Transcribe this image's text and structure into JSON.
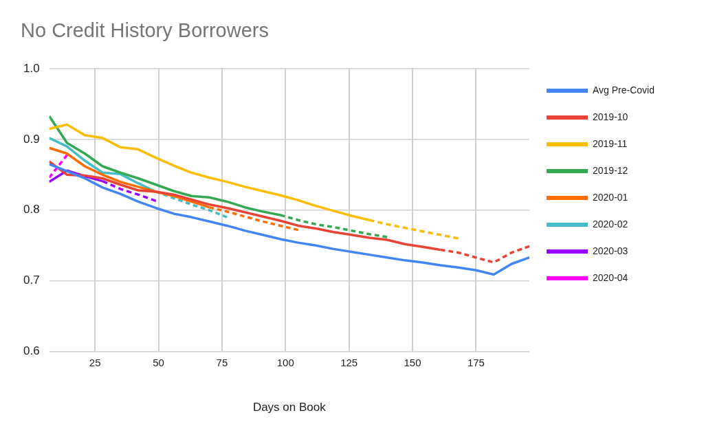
{
  "chart_data": {
    "type": "line",
    "title": "No Credit History Borrowers",
    "xlabel": "Days on Book",
    "xlim": [
      7,
      196
    ],
    "xticks": [
      25,
      50,
      75,
      100,
      125,
      150,
      175
    ],
    "ylim": [
      0.6,
      1.0
    ],
    "yticks": [
      0.6,
      0.7,
      0.8,
      0.9,
      {
        "value": 1.0,
        "label": "1.0"
      }
    ],
    "grid": true,
    "legend": "right",
    "marker": "none",
    "line_style": "solid",
    "series": [
      {
        "name": "Avg Pre-Covid",
        "color": "#4285f4",
        "x": [
          7,
          14,
          21,
          28,
          35,
          42,
          49,
          56,
          63,
          70,
          77,
          84,
          91,
          98,
          105,
          112,
          119,
          126,
          133,
          140,
          147,
          154,
          161,
          168,
          175,
          182,
          189,
          196
        ],
        "values": [
          0.865,
          0.855,
          0.845,
          0.832,
          0.823,
          0.812,
          0.803,
          0.795,
          0.79,
          0.784,
          0.778,
          0.771,
          0.765,
          0.759,
          0.754,
          0.75,
          0.745,
          0.741,
          0.737,
          0.733,
          0.729,
          0.726,
          0.722,
          0.719,
          0.715,
          0.709,
          0.724,
          0.733
        ]
      },
      {
        "name": "2019-10",
        "color": "#ea4335",
        "x": [
          7,
          14,
          21,
          28,
          35,
          42,
          49,
          56,
          63,
          70,
          77,
          84,
          91,
          98,
          105,
          112,
          119,
          126,
          133,
          140,
          147,
          154,
          161
        ],
        "values": [
          0.869,
          0.85,
          0.849,
          0.845,
          0.836,
          0.828,
          0.826,
          0.822,
          0.815,
          0.808,
          0.803,
          0.797,
          0.791,
          0.785,
          0.778,
          0.774,
          0.769,
          0.765,
          0.761,
          0.758,
          0.752,
          0.748,
          0.744
        ]
      },
      {
        "color": "#ea4335",
        "line_style": "dashed",
        "x": [
          161,
          168,
          175,
          182,
          189,
          196
        ],
        "values": [
          0.744,
          0.74,
          0.733,
          0.726,
          0.74,
          0.749
        ]
      },
      {
        "name": "2019-11",
        "color": "#fbbc04",
        "x": [
          7,
          14,
          21,
          28,
          35,
          42,
          49,
          56,
          63,
          70,
          77,
          84,
          91,
          98,
          105,
          112,
          119,
          126,
          133
        ],
        "values": [
          0.915,
          0.921,
          0.906,
          0.902,
          0.889,
          0.886,
          0.874,
          0.863,
          0.853,
          0.846,
          0.84,
          0.833,
          0.827,
          0.821,
          0.814,
          0.806,
          0.799,
          0.792,
          0.786
        ]
      },
      {
        "color": "#fbbc04",
        "line_style": "dashed",
        "x": [
          133,
          140,
          147,
          154,
          161,
          168
        ],
        "values": [
          0.786,
          0.78,
          0.775,
          0.77,
          0.765,
          0.76
        ]
      },
      {
        "name": "2019-12",
        "color": "#34a853",
        "x": [
          7,
          14,
          21,
          28,
          35,
          42,
          49,
          56,
          63,
          70,
          77,
          84,
          91,
          98
        ],
        "values": [
          0.933,
          0.895,
          0.88,
          0.862,
          0.853,
          0.845,
          0.836,
          0.827,
          0.82,
          0.818,
          0.812,
          0.804,
          0.798,
          0.793
        ]
      },
      {
        "color": "#34a853",
        "line_style": "dashed",
        "x": [
          98,
          105,
          112,
          119,
          126,
          133,
          140
        ],
        "values": [
          0.793,
          0.786,
          0.78,
          0.776,
          0.771,
          0.766,
          0.762
        ]
      },
      {
        "name": "2020-01",
        "color": "#ff6d01",
        "x": [
          7,
          14,
          21,
          28,
          35,
          42,
          49,
          56,
          63,
          70
        ],
        "values": [
          0.888,
          0.88,
          0.862,
          0.85,
          0.84,
          0.833,
          0.826,
          0.82,
          0.812,
          0.804
        ]
      },
      {
        "color": "#ff6d01",
        "line_style": "dashed",
        "x": [
          70,
          77,
          84,
          91,
          98,
          105
        ],
        "values": [
          0.804,
          0.798,
          0.791,
          0.784,
          0.778,
          0.772
        ]
      },
      {
        "name": "2020-02",
        "color": "#46bdc6",
        "x": [
          7,
          14,
          21,
          28,
          35,
          42,
          49
        ],
        "values": [
          0.902,
          0.89,
          0.87,
          0.853,
          0.851,
          0.838,
          0.826
        ]
      },
      {
        "color": "#46bdc6",
        "line_style": "dashed",
        "x": [
          49,
          56,
          63,
          70,
          77
        ],
        "values": [
          0.826,
          0.817,
          0.808,
          0.8,
          0.79
        ]
      },
      {
        "name": "2020-03",
        "color": "#9900ff",
        "x": [
          7,
          14,
          21,
          28
        ],
        "values": [
          0.84,
          0.856,
          0.848,
          0.841
        ]
      },
      {
        "color": "#9900ff",
        "line_style": "dashed",
        "x": [
          28,
          35,
          42,
          49
        ],
        "values": [
          0.841,
          0.83,
          0.822,
          0.813
        ]
      },
      {
        "name": "2020-04",
        "color": "#ff00ff",
        "line_style": "dashed",
        "x": [
          7,
          14
        ],
        "values": [
          0.846,
          0.878
        ]
      }
    ]
  }
}
